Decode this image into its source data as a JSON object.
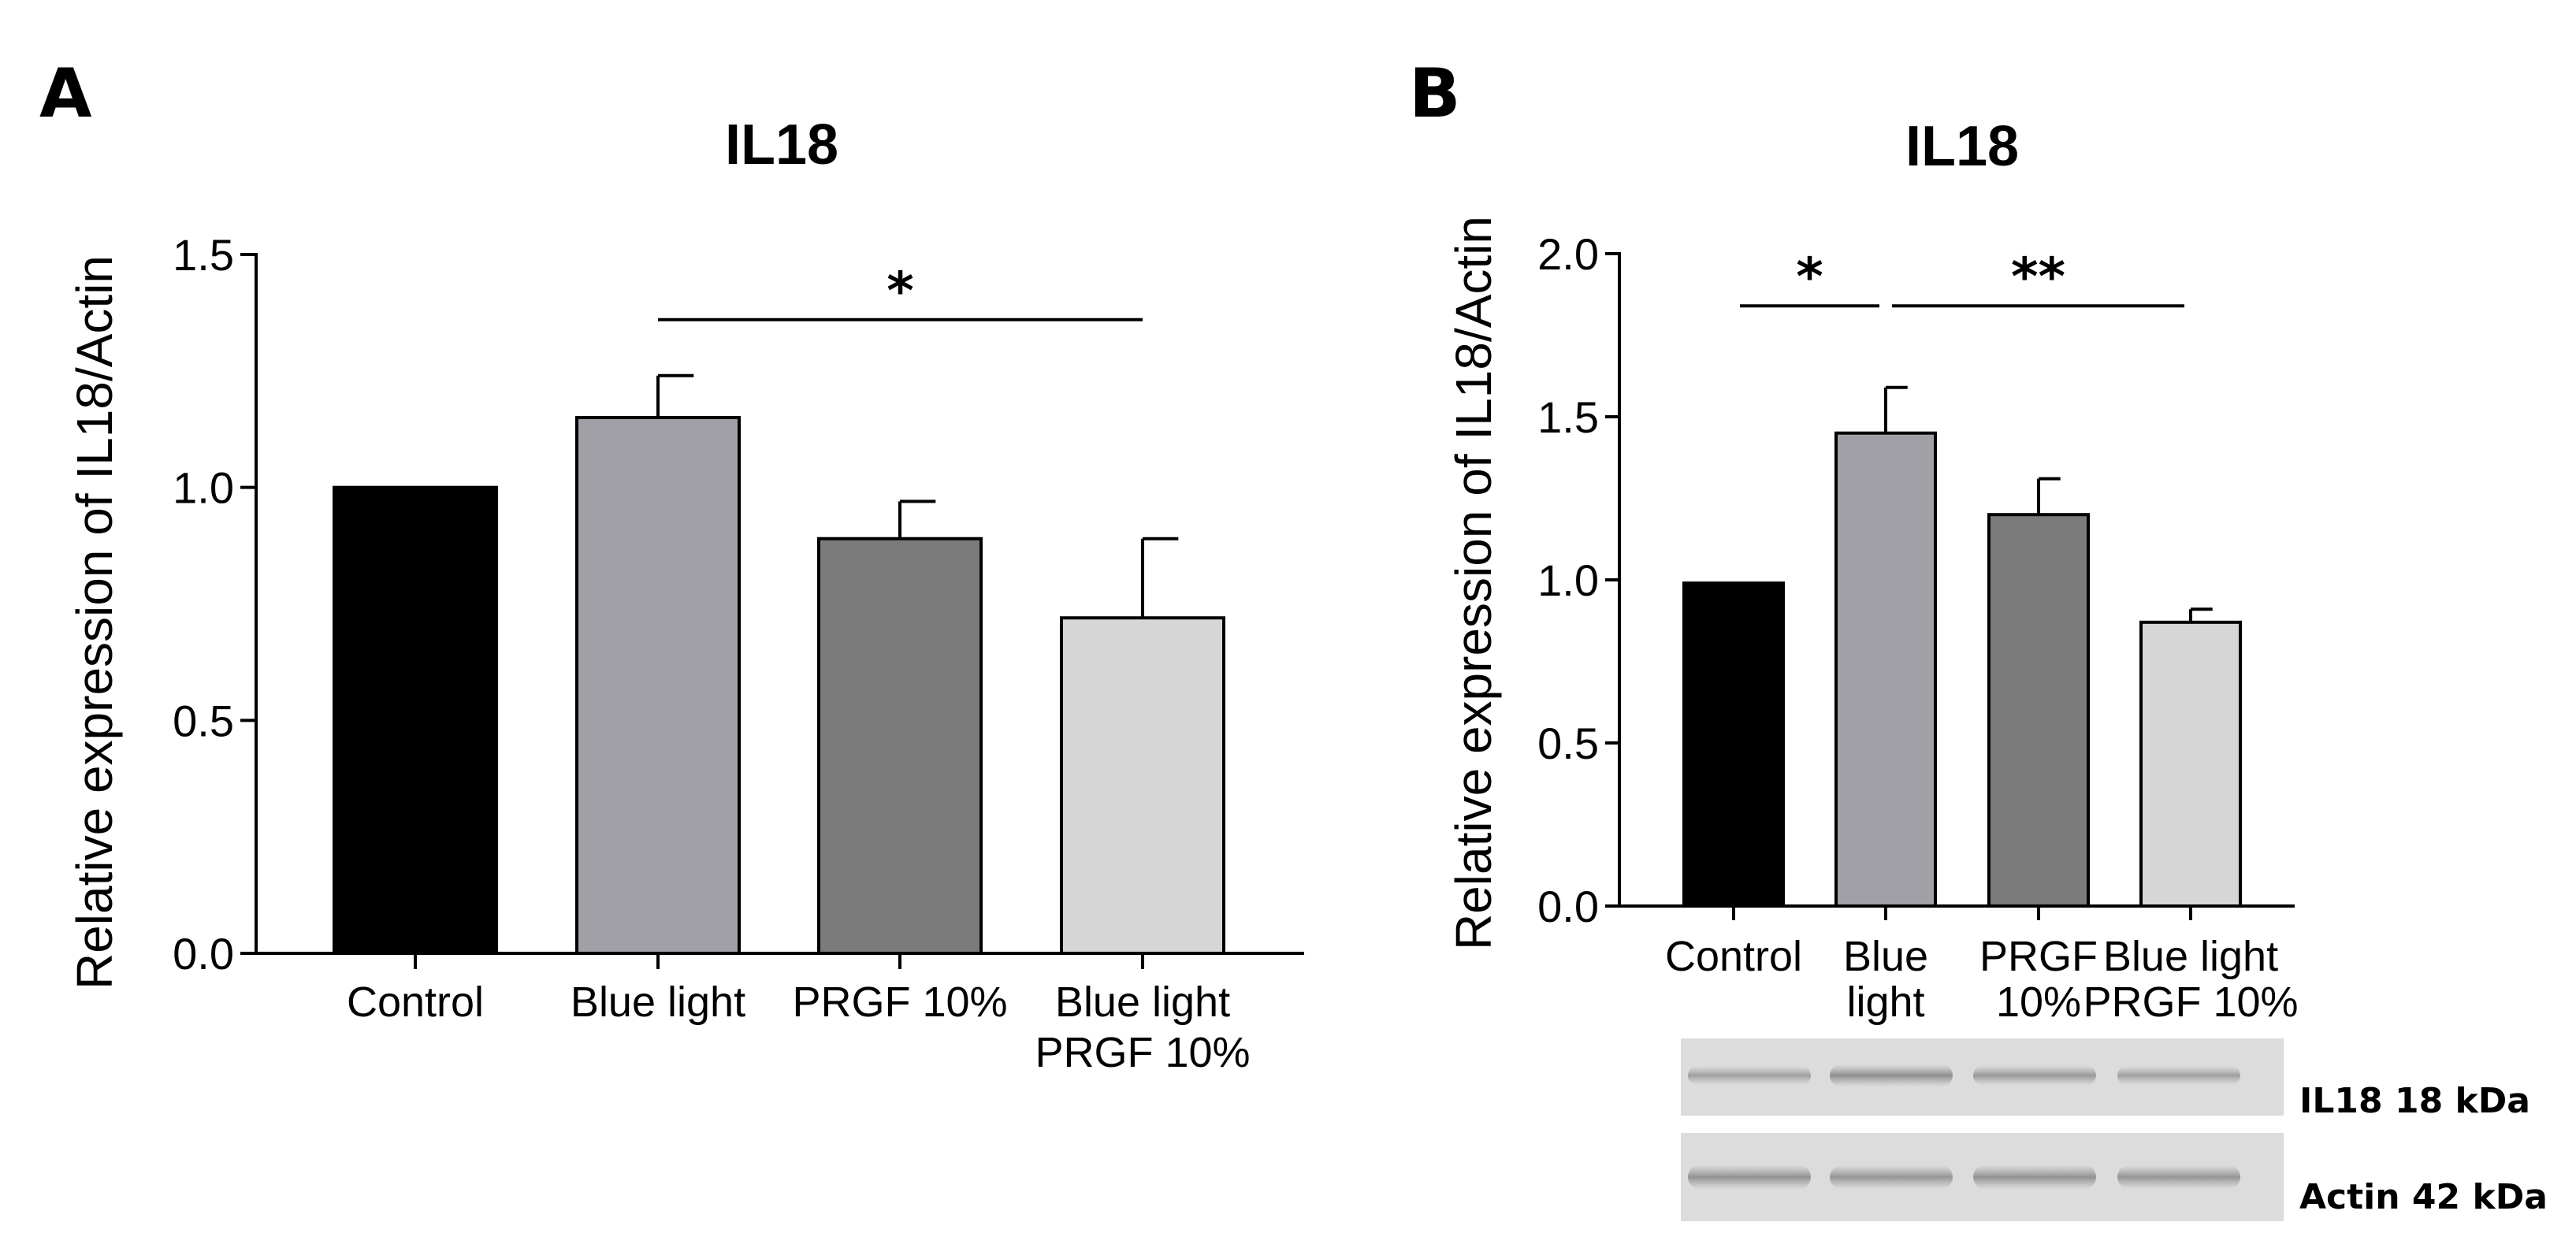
{
  "panels": {
    "a": {
      "letter": "A"
    },
    "b": {
      "letter": "B"
    }
  },
  "chart_data": [
    {
      "type": "bar",
      "panel": "A",
      "title": "IL18",
      "xlabel": "",
      "ylabel": "Relative expression of IL18/Actin",
      "ylim": [
        0,
        1.5
      ],
      "yticks": [
        0.0,
        0.5,
        1.0,
        1.5
      ],
      "ytick_labels": [
        "0.0",
        "0.5",
        "1.0",
        "1.5"
      ],
      "categories": [
        [
          "Control"
        ],
        [
          "Blue light"
        ],
        [
          "PRGF 10%"
        ],
        [
          "Blue light",
          "PRGF 10%"
        ]
      ],
      "values": [
        1.0,
        1.15,
        0.89,
        0.72
      ],
      "errors": [
        0.0,
        0.09,
        0.08,
        0.17
      ],
      "colors": [
        "#000000",
        "#a0a0a6",
        "#7b7b7b",
        "#d6d6d6"
      ],
      "significance": [
        {
          "from": 1,
          "to": 3,
          "label": "*",
          "y": 1.36
        }
      ]
    },
    {
      "type": "bar",
      "panel": "B",
      "title": "IL18",
      "xlabel": "",
      "ylabel": "Relative expression of IL18/Actin",
      "ylim": [
        0,
        2.0
      ],
      "yticks": [
        0.0,
        0.5,
        1.0,
        1.5,
        2.0
      ],
      "ytick_labels": [
        "0.0",
        "0.5",
        "1.0",
        "1.5",
        "2.0"
      ],
      "categories": [
        [
          "Control"
        ],
        [
          "Blue",
          "light"
        ],
        [
          "PRGF",
          "10%"
        ],
        [
          "Blue light",
          "PRGF  10%"
        ]
      ],
      "values": [
        0.99,
        1.45,
        1.2,
        0.87
      ],
      "errors": [
        0.0,
        0.14,
        0.11,
        0.04
      ],
      "colors": [
        "#000000",
        "#a0a0a6",
        "#7b7b7b",
        "#d6d6d6"
      ],
      "significance": [
        {
          "from": 0,
          "to": 1,
          "label": "*",
          "y": 1.84
        },
        {
          "from": 1,
          "to": 3,
          "label": "**",
          "y": 1.84
        }
      ]
    }
  ],
  "blot": {
    "lanes": 4,
    "bands": [
      {
        "label": "IL18 18 kDa",
        "intensity": [
          0.35,
          0.6,
          0.45,
          0.35
        ]
      },
      {
        "label": "Actin 42 kDa",
        "intensity": [
          0.55,
          0.5,
          0.55,
          0.5
        ]
      }
    ]
  }
}
